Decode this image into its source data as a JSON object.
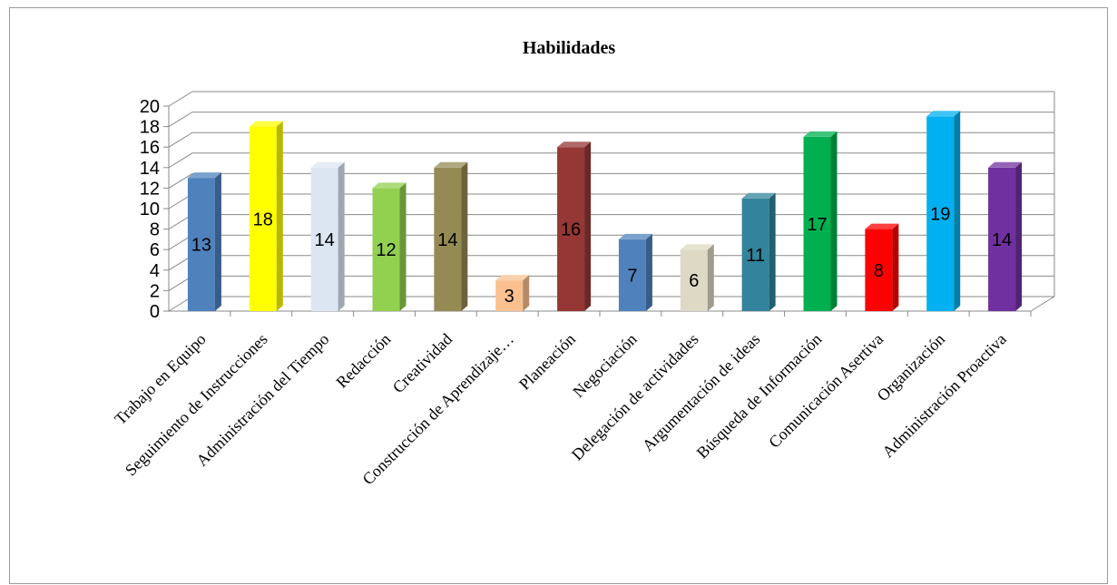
{
  "chart_data": {
    "type": "bar",
    "title": "Habilidades",
    "xlabel": "",
    "ylabel": "",
    "ylim": [
      0,
      20
    ],
    "yticks": [
      0,
      2,
      4,
      6,
      8,
      10,
      12,
      14,
      16,
      18,
      20
    ],
    "grid": true,
    "legend": "none",
    "categories": [
      "Trabajo en Equipo",
      "Seguimiento de Instrucciones",
      "Administración del Tiempo",
      "Redacción",
      "Creatividad",
      "Construcción de Aprendizaje…",
      "Planeación",
      "Negociación",
      "Delegación de actividades",
      "Argumentación de ideas",
      "Búsqueda de Información",
      "Comunicación Asertiva",
      "Organización",
      "Administración Proactiva"
    ],
    "values": [
      13,
      18,
      14,
      12,
      14,
      3,
      16,
      7,
      6,
      11,
      17,
      8,
      19,
      14
    ],
    "data_labels": [
      "13",
      "18",
      "14",
      "12",
      "14",
      "3",
      "16",
      "7",
      "6",
      "11",
      "17",
      "8",
      "19",
      "14"
    ],
    "colors": [
      "#4F81BD",
      "#FFFF00",
      "#DCE6F2",
      "#92D050",
      "#948A54",
      "#FAC090",
      "#953735",
      "#4F81BD",
      "#DDD9C4",
      "#31849B",
      "#00B050",
      "#FF0000",
      "#00B0F0",
      "#7030A0"
    ]
  }
}
